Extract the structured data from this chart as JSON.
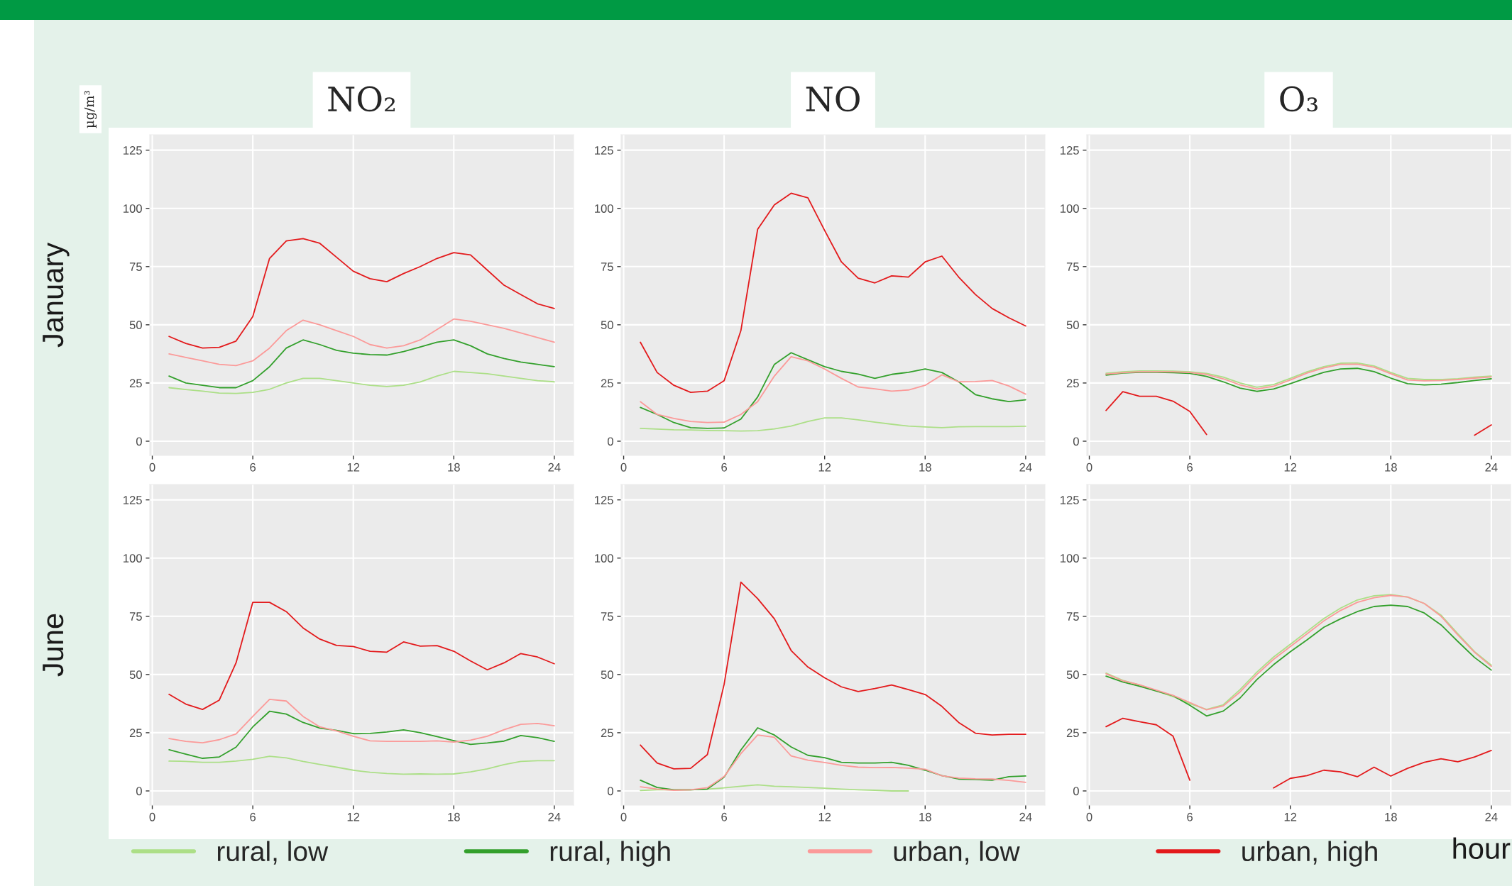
{
  "chart_data": [
    {
      "type": "line",
      "title": "NO₂",
      "ylabel": "January",
      "annotations": [
        "µg/m³"
      ],
      "x": [
        1,
        2,
        3,
        4,
        5,
        6,
        7,
        8,
        9,
        10,
        11,
        12,
        13,
        14,
        15,
        16,
        17,
        18,
        19,
        20,
        21,
        22,
        23,
        24
      ],
      "xlim": [
        -0.15,
        25.15
      ],
      "ylim": [
        -6.1,
        131.6
      ],
      "xticks": [
        0,
        6,
        12,
        18,
        24
      ],
      "yticks": [
        0,
        25,
        50,
        75,
        100,
        125
      ],
      "grid": true,
      "series": [
        {
          "color": "#acdf87",
          "values": [
            23,
            22.2,
            21.5,
            20.7,
            20.5,
            21,
            22.3,
            25,
            27,
            27,
            26,
            25,
            24,
            23.5,
            24,
            25.5,
            28,
            30,
            29.5,
            29,
            28,
            27,
            26,
            25.5
          ]
        },
        {
          "color": "#33a02c",
          "values": [
            28,
            25,
            24,
            23,
            23,
            26,
            32,
            40,
            43.5,
            41.5,
            39,
            37.8,
            37.2,
            37,
            38.5,
            40.5,
            42.5,
            43.5,
            41,
            37.5,
            35.5,
            34,
            33,
            32
          ]
        },
        {
          "color": "#fb9a99",
          "values": [
            37.5,
            36,
            34.5,
            33,
            32.5,
            34.5,
            40,
            47.5,
            52,
            50,
            47.5,
            45,
            41.5,
            40,
            41,
            43.5,
            48,
            52.5,
            51.5,
            50,
            48.5,
            46.5,
            44.5,
            42.5
          ]
        },
        {
          "color": "#e31a1c",
          "values": [
            45,
            42,
            40,
            40.3,
            43,
            53.5,
            78.5,
            86,
            87,
            85,
            79,
            73,
            69.8,
            68.5,
            72,
            75,
            78.5,
            81,
            80,
            73.5,
            67,
            63,
            59,
            57
          ]
        }
      ]
    },
    {
      "type": "line",
      "title": "NO",
      "x": [
        1,
        2,
        3,
        4,
        5,
        6,
        7,
        8,
        9,
        10,
        11,
        12,
        13,
        14,
        15,
        16,
        17,
        18,
        19,
        20,
        21,
        22,
        23,
        24
      ],
      "xlim": [
        -0.15,
        25.15
      ],
      "ylim": [
        -6.1,
        131.6
      ],
      "xticks": [
        0,
        6,
        12,
        18,
        24
      ],
      "yticks": [
        0,
        25,
        50,
        75,
        100,
        125
      ],
      "grid": true,
      "series": [
        {
          "color": "#acdf87",
          "values": [
            5.5,
            5.2,
            4.9,
            4.8,
            4.6,
            4.5,
            4.4,
            4.5,
            5.3,
            6.5,
            8.5,
            10,
            10,
            9.2,
            8.2,
            7.3,
            6.5,
            6.1,
            5.8,
            6.2,
            6.3,
            6.3,
            6.3,
            6.4
          ]
        },
        {
          "color": "#33a02c",
          "values": [
            14.5,
            11.5,
            8,
            5.8,
            5.5,
            5.7,
            9.5,
            19,
            33,
            38,
            35,
            32,
            30,
            28.8,
            27,
            28.7,
            29.6,
            31,
            29.5,
            25.5,
            20,
            18.2,
            17,
            17.8
          ]
        },
        {
          "color": "#fb9a99",
          "values": [
            17,
            11.5,
            9.8,
            8.5,
            8,
            8.2,
            11.5,
            17,
            28,
            36.3,
            34.5,
            31,
            27,
            23.3,
            22.5,
            21.5,
            22,
            24,
            28.5,
            25.5,
            25.6,
            26.1,
            23.7,
            20.2
          ]
        },
        {
          "color": "#e31a1c",
          "values": [
            42.5,
            29.5,
            24,
            21,
            21.5,
            26,
            47.5,
            91,
            101.5,
            106.5,
            104.5,
            90.5,
            77,
            70,
            68,
            71,
            70.5,
            77,
            79.5,
            70.5,
            63,
            57,
            53,
            49.5
          ]
        }
      ]
    },
    {
      "type": "line",
      "title": "O₃",
      "x": [
        1,
        2,
        3,
        4,
        5,
        6,
        7,
        8,
        9,
        10,
        11,
        12,
        13,
        14,
        15,
        16,
        17,
        18,
        19,
        20,
        21,
        22,
        23,
        24
      ],
      "xlim": [
        -0.15,
        25.15
      ],
      "ylim": [
        -6.1,
        131.6
      ],
      "xticks": [
        0,
        6,
        12,
        18,
        24
      ],
      "yticks": [
        0,
        25,
        50,
        75,
        100,
        125
      ],
      "grid": true,
      "series": [
        {
          "color": "#acdf87",
          "values": [
            29.2,
            29.8,
            30.2,
            30.2,
            30.1,
            29.8,
            29.1,
            27.5,
            25,
            23.2,
            24.3,
            27,
            29.8,
            32,
            33.5,
            33.6,
            32.3,
            29.5,
            27,
            26.5,
            26.5,
            26.8,
            27.5,
            28
          ]
        },
        {
          "color": "#33a02c",
          "values": [
            28.4,
            29.3,
            29.6,
            29.6,
            29.4,
            29.1,
            27.8,
            25.5,
            22.8,
            21.4,
            22.4,
            24.7,
            27.2,
            29.6,
            31,
            31.3,
            29.9,
            27.1,
            24.7,
            24.2,
            24.5,
            25.2,
            26.1,
            26.8
          ]
        },
        {
          "color": "#fb9a99",
          "values": [
            28.8,
            29.4,
            29.8,
            29.8,
            29.8,
            29.5,
            28.7,
            26.8,
            24.2,
            22.4,
            23.6,
            26.3,
            29.3,
            31.5,
            33,
            33.1,
            31.8,
            29,
            26.3,
            25.9,
            26.1,
            26.5,
            27.1,
            27.6
          ]
        },
        {
          "color": "#e31a1c",
          "values": [
            13.2,
            21.3,
            19.3,
            19.3,
            17.2,
            12.8,
            2.9,
            null,
            null,
            null,
            null,
            null,
            null,
            null,
            null,
            null,
            null,
            null,
            null,
            null,
            null,
            null,
            2.6,
            7
          ]
        }
      ]
    },
    {
      "type": "line",
      "ylabel": "June",
      "x": [
        1,
        2,
        3,
        4,
        5,
        6,
        7,
        8,
        9,
        10,
        11,
        12,
        13,
        14,
        15,
        16,
        17,
        18,
        19,
        20,
        21,
        22,
        23,
        24
      ],
      "xlim": [
        -0.15,
        25.15
      ],
      "ylim": [
        -6.1,
        131.6
      ],
      "xticks": [
        0,
        6,
        12,
        18,
        24
      ],
      "yticks": [
        0,
        25,
        50,
        75,
        100,
        125
      ],
      "grid": true,
      "series": [
        {
          "color": "#acdf87",
          "values": [
            12.8,
            12.7,
            12.3,
            12.3,
            12.8,
            13.6,
            14.9,
            14.2,
            12.7,
            11.4,
            10.2,
            8.9,
            8.0,
            7.5,
            7.2,
            7.3,
            7.2,
            7.3,
            8.2,
            9.5,
            11.3,
            12.7,
            13,
            13
          ]
        },
        {
          "color": "#33a02c",
          "values": [
            17.7,
            15.8,
            14,
            14.6,
            18.8,
            27.5,
            34.2,
            33,
            29.4,
            27,
            26,
            24.6,
            24.7,
            25.3,
            26.2,
            25,
            23.3,
            21.6,
            20,
            20.6,
            21.4,
            23.8,
            22.9,
            21.3
          ]
        },
        {
          "color": "#fb9a99",
          "values": [
            22.5,
            21.3,
            20.7,
            22,
            24.5,
            32,
            39.3,
            38.6,
            32,
            27.5,
            25.8,
            23.5,
            21.5,
            21.3,
            21.3,
            21.3,
            21.5,
            21,
            21.8,
            23.5,
            26.3,
            28.6,
            29,
            28
          ]
        },
        {
          "color": "#e31a1c",
          "values": [
            41.5,
            37.3,
            35,
            39,
            55,
            81,
            81,
            77,
            70,
            65.2,
            62.5,
            62,
            60,
            59.6,
            64,
            62.2,
            62.4,
            60,
            55.8,
            52,
            55,
            59,
            57.5,
            54.6
          ]
        }
      ]
    },
    {
      "type": "line",
      "x": [
        1,
        2,
        3,
        4,
        5,
        6,
        7,
        8,
        9,
        10,
        11,
        12,
        13,
        14,
        15,
        16,
        17,
        18,
        19,
        20,
        21,
        22,
        23,
        24
      ],
      "xlim": [
        -0.15,
        25.15
      ],
      "ylim": [
        -6.1,
        131.6
      ],
      "xticks": [
        0,
        6,
        12,
        18,
        24
      ],
      "yticks": [
        0,
        25,
        50,
        75,
        100,
        125
      ],
      "grid": true,
      "series": [
        {
          "color": "#acdf87",
          "values": [
            0.2,
            0.5,
            0.5,
            0.5,
            0.8,
            1.3,
            2,
            2.6,
            2,
            1.8,
            1.5,
            1.2,
            0.8,
            0.5,
            0.3,
            0,
            0,
            null,
            null,
            null,
            null,
            null,
            null,
            null
          ]
        },
        {
          "color": "#33a02c",
          "values": [
            4.6,
            1.5,
            0.5,
            0.5,
            0.8,
            5.9,
            17.6,
            27.1,
            24,
            18.9,
            15.3,
            14.3,
            12.3,
            12,
            12,
            12.3,
            11,
            8.9,
            6.6,
            5.1,
            4.9,
            4.6,
            6.1,
            6.4
          ]
        },
        {
          "color": "#fb9a99",
          "values": [
            1.8,
            0.8,
            0.3,
            0.5,
            1.4,
            6.2,
            16,
            24,
            23,
            15,
            13.2,
            12.2,
            11,
            10.2,
            10,
            10.1,
            9.8,
            9.3,
            6.5,
            5.5,
            5.2,
            5.1,
            4.5,
            3.7
          ]
        },
        {
          "color": "#e31a1c",
          "values": [
            19.7,
            12,
            9.5,
            9.7,
            15.6,
            45.8,
            89.7,
            82.6,
            73.9,
            60.3,
            53.2,
            48.6,
            44.7,
            42.7,
            44,
            45.5,
            43.5,
            41.4,
            36.3,
            29.4,
            24.8,
            24,
            24.3,
            24.3
          ]
        }
      ]
    },
    {
      "type": "line",
      "xlabel": "hour",
      "legend": "bottom",
      "x": [
        1,
        2,
        3,
        4,
        5,
        6,
        7,
        8,
        9,
        10,
        11,
        12,
        13,
        14,
        15,
        16,
        17,
        18,
        19,
        20,
        21,
        22,
        23,
        24
      ],
      "xlim": [
        -0.15,
        25.15
      ],
      "ylim": [
        -6.1,
        131.6
      ],
      "xticks": [
        0,
        6,
        12,
        18,
        24
      ],
      "yticks": [
        0,
        25,
        50,
        75,
        100,
        125
      ],
      "grid": true,
      "series": [
        {
          "name": "rural, low",
          "color": "#acdf87",
          "values": [
            50.6,
            47.5,
            45.5,
            43,
            40.5,
            37.5,
            35,
            37,
            43.5,
            51,
            57.5,
            63,
            68.5,
            74,
            78.5,
            82,
            83.8,
            84.3,
            83.3,
            80.5,
            75.5,
            67.5,
            59.8,
            54
          ]
        },
        {
          "name": "rural, high",
          "color": "#33a02c",
          "values": [
            49.3,
            46.8,
            45,
            42.9,
            40.9,
            36.8,
            32.2,
            34.3,
            39.9,
            47.8,
            54.2,
            59.8,
            64.9,
            70.3,
            73.9,
            77,
            79.2,
            79.8,
            79.2,
            76.4,
            71.3,
            64.2,
            57.3,
            51.9
          ]
        },
        {
          "name": "urban, low",
          "color": "#fb9a99",
          "values": [
            50.3,
            47.3,
            45.6,
            43.3,
            41,
            38,
            34.8,
            36.5,
            42.5,
            50,
            56.5,
            62,
            67.5,
            73,
            77.5,
            81,
            83,
            84,
            83.3,
            80.5,
            75,
            67,
            59.5,
            53.5
          ]
        },
        {
          "name": "urban, high",
          "color": "#e31a1c",
          "values": [
            27.6,
            31.2,
            29.7,
            28.4,
            23.5,
            4.6,
            null,
            null,
            null,
            null,
            1.3,
            5.4,
            6.6,
            8.9,
            8.2,
            6.1,
            10.2,
            6.4,
            9.7,
            12.3,
            13.8,
            12.5,
            14.6,
            17.4
          ]
        }
      ]
    }
  ]
}
